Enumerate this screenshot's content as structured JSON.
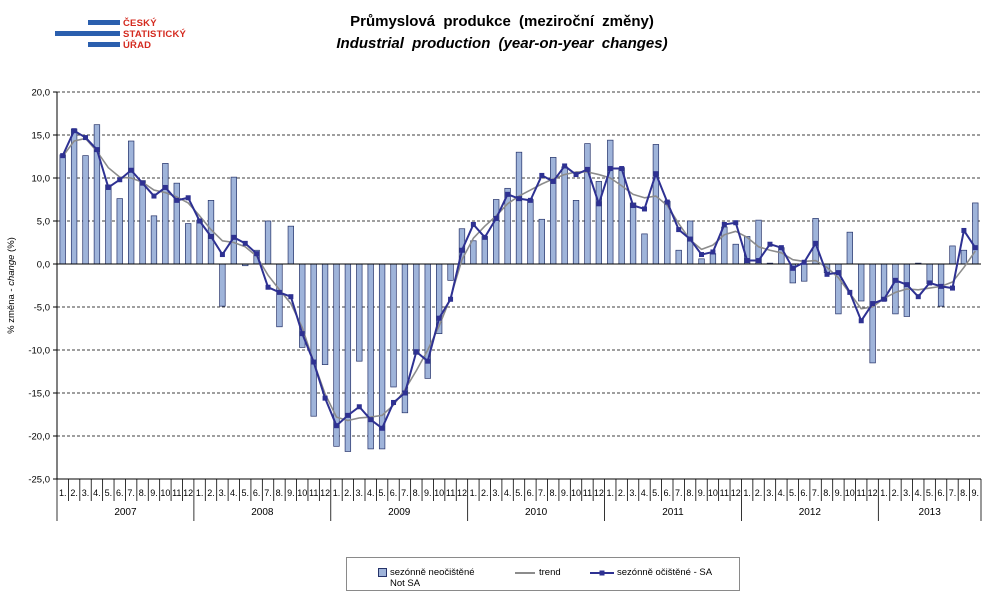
{
  "logo": {
    "lines": [
      "ČESKÝ",
      "STATISTICKÝ",
      "ÚŘAD"
    ]
  },
  "colors": {
    "bar_fill": "#9fb4da",
    "bar_outline": "#26336a",
    "trend": "#8c8c8c",
    "sa": "#2e3192",
    "grid": "#000000",
    "logo_blue": "#2b5fae",
    "logo_text": "#d42a1f"
  },
  "chart_data": {
    "type": "bar",
    "title": "Průmyslová produkce (meziroční změny)",
    "subtitle": "Industrial production (year-on-year changes)",
    "ylabel": [
      "% změna -",
      "change",
      "(%)"
    ],
    "ylim": [
      -25,
      20
    ],
    "grid": true,
    "legend_position": "bottom",
    "yticks": [
      {
        "value": 20,
        "label": "20,0"
      },
      {
        "value": 15,
        "label": "15,0"
      },
      {
        "value": 10,
        "label": "10,0"
      },
      {
        "value": 5,
        "label": "5,0"
      },
      {
        "value": 0,
        "label": "0,0"
      },
      {
        "value": -5,
        "label": "-5,0"
      },
      {
        "value": -10,
        "label": "-10,0"
      },
      {
        "value": -15,
        "label": "-15,0"
      },
      {
        "value": -20,
        "label": "-20,0"
      },
      {
        "value": -25,
        "label": "-25,0"
      }
    ],
    "years": [
      {
        "year": "2007",
        "months": [
          "1.",
          "2.",
          "3.",
          "4.",
          "5.",
          "6.",
          "7.",
          "8.",
          "9.",
          "10",
          "11",
          "12"
        ]
      },
      {
        "year": "2008",
        "months": [
          "1.",
          "2.",
          "3.",
          "4.",
          "5.",
          "6.",
          "7.",
          "8.",
          "9.",
          "10",
          "11",
          "12"
        ]
      },
      {
        "year": "2009",
        "months": [
          "1.",
          "2.",
          "3.",
          "4.",
          "5.",
          "6.",
          "7.",
          "8.",
          "9.",
          "10",
          "11",
          "12"
        ]
      },
      {
        "year": "2010",
        "months": [
          "1.",
          "2.",
          "3.",
          "4.",
          "5.",
          "6.",
          "7.",
          "8.",
          "9.",
          "10",
          "11",
          "12"
        ]
      },
      {
        "year": "2011",
        "months": [
          "1.",
          "2.",
          "3.",
          "4.",
          "5.",
          "6.",
          "7.",
          "8.",
          "9.",
          "10",
          "11",
          "12"
        ]
      },
      {
        "year": "2012",
        "months": [
          "1.",
          "2.",
          "3.",
          "4.",
          "5.",
          "6.",
          "7.",
          "8.",
          "9.",
          "10",
          "11",
          "12"
        ]
      },
      {
        "year": "2013",
        "months": [
          "1.",
          "2.",
          "3.",
          "4.",
          "5.",
          "6.",
          "7.",
          "8.",
          "9."
        ]
      }
    ],
    "series": [
      {
        "name": "sezónně neočištěné",
        "name_en": "Not SA",
        "type": "bar",
        "values": [
          12.7,
          15.7,
          12.6,
          16.2,
          9.2,
          7.6,
          14.3,
          9.7,
          5.6,
          11.7,
          9.4,
          4.7,
          5.1,
          7.4,
          -4.9,
          10.1,
          -0.2,
          1.6,
          5.0,
          -7.3,
          4.4,
          -9.7,
          -17.7,
          -11.7,
          -21.2,
          -21.8,
          -11.3,
          -21.5,
          -21.5,
          -14.3,
          -17.3,
          -10.5,
          -13.3,
          -8.1,
          -1.9,
          4.1,
          2.7,
          3.2,
          7.5,
          8.8,
          13.0,
          7.5,
          5.2,
          12.4,
          11.3,
          7.4,
          14.0,
          9.6,
          14.4,
          11.2,
          7.1,
          3.5,
          13.9,
          7.3,
          1.6,
          5.0,
          0.6,
          1.2,
          4.3,
          2.3,
          3.2,
          5.1,
          0.1,
          1.9,
          -2.2,
          -2.0,
          5.3,
          -1.0,
          -5.8,
          3.7,
          -4.3,
          -11.5,
          -4.3,
          -5.8,
          -6.1,
          0.1,
          -2.3,
          -4.9,
          2.1,
          1.6,
          7.1
        ]
      },
      {
        "name": "trend",
        "type": "line",
        "values": [
          12.5,
          14.3,
          14.6,
          13.1,
          11.2,
          10.1,
          10.0,
          9.5,
          8.6,
          8.3,
          7.8,
          7.1,
          5.6,
          4.0,
          2.7,
          2.5,
          2.0,
          0.9,
          -1.3,
          -3.0,
          -4.6,
          -7.4,
          -11.4,
          -15.1,
          -17.8,
          -18.2,
          -17.9,
          -17.8,
          -17.6,
          -16.4,
          -14.6,
          -12.4,
          -10.0,
          -7.2,
          -3.9,
          0.5,
          3.0,
          4.4,
          5.6,
          7.0,
          7.9,
          8.6,
          9.3,
          9.9,
          10.4,
          10.7,
          10.7,
          10.4,
          10.0,
          9.1,
          8.1,
          7.7,
          7.9,
          6.8,
          4.7,
          2.8,
          1.7,
          2.2,
          3.4,
          3.8,
          3.1,
          2.0,
          1.6,
          1.3,
          0.5,
          0.3,
          0.4,
          -0.4,
          -1.6,
          -3.4,
          -5.2,
          -5.0,
          -4.0,
          -3.3,
          -2.9,
          -3.0,
          -2.8,
          -2.6,
          -2.1,
          -0.4,
          1.5
        ]
      },
      {
        "name": "sezónně očištěné - SA",
        "type": "line",
        "marker": "square",
        "values": [
          12.6,
          15.5,
          14.7,
          13.3,
          8.9,
          9.8,
          10.9,
          9.4,
          7.9,
          8.9,
          7.4,
          7.7,
          5.0,
          3.2,
          1.1,
          3.1,
          2.4,
          1.2,
          -2.7,
          -3.3,
          -3.8,
          -8.1,
          -11.4,
          -15.6,
          -18.8,
          -17.6,
          -16.6,
          -18.1,
          -19.1,
          -16.1,
          -15.0,
          -10.2,
          -11.3,
          -6.3,
          -4.1,
          1.6,
          4.6,
          3.1,
          5.3,
          8.1,
          7.6,
          7.4,
          10.3,
          9.6,
          11.4,
          10.4,
          11.0,
          7.0,
          11.1,
          11.1,
          6.8,
          6.4,
          10.5,
          7.2,
          4.0,
          2.9,
          1.1,
          1.4,
          4.6,
          4.8,
          0.4,
          0.4,
          2.3,
          1.9,
          -0.5,
          0.2,
          2.4,
          -1.2,
          -1.0,
          -3.3,
          -6.6,
          -4.6,
          -4.1,
          -1.9,
          -2.4,
          -3.8,
          -2.2,
          -2.6,
          -2.8,
          3.9,
          1.9
        ]
      }
    ]
  }
}
